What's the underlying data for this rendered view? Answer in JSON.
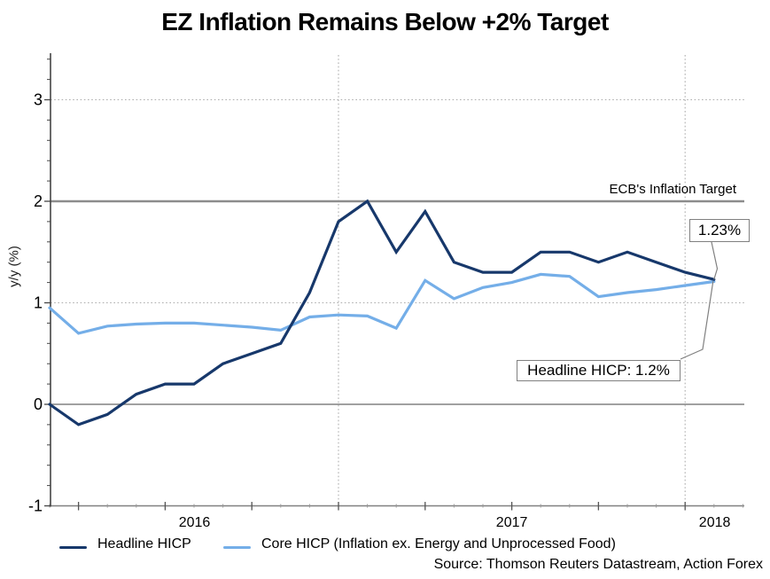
{
  "title": "EZ Inflation Remains Below +2% Target",
  "source": "Source: Thomson Reuters Datastream, Action Forex",
  "annotations": {
    "target_label": "ECB's Inflation Target",
    "last_value_tag": "1.23%",
    "callout": "Headline HICP: 1.2%"
  },
  "legend": {
    "items": [
      {
        "label": "Headline HICP",
        "color": "#17386B"
      },
      {
        "label": "Core HICP (Inflation ex. Energy and Unprocessed Food)",
        "color": "#74AEE8"
      }
    ]
  },
  "colors": {
    "headline": "#17386B",
    "core": "#74AEE8",
    "dotted_grid": "#ADADAD",
    "zero_line": "#808080",
    "target_line": "#8C8C8C",
    "y_axis": "#454545",
    "x_axis": "#808080",
    "leader": "#808080",
    "text": "#000000"
  },
  "chart_data": {
    "type": "line",
    "title": "EZ Inflation Remains Below +2% Target",
    "xlabel": "",
    "ylabel": "y/y (%)",
    "ylim": [
      -1,
      3.45
    ],
    "y_ticks": [
      -1,
      0,
      1,
      2,
      3
    ],
    "y_minor_tick_step": 0.2,
    "grid": "dotted horizontal lines at y=1 and y=3; dotted vertical lines at Jan 2017 and Jan 2018; solid gray lines at y=0 and y=2",
    "legend_position": "bottom",
    "x": [
      "Mar 2016",
      "Apr 2016",
      "May 2016",
      "Jun 2016",
      "Jul 2016",
      "Aug 2016",
      "Sep 2016",
      "Oct 2016",
      "Nov 2016",
      "Dec 2016",
      "Jan 2017",
      "Feb 2017",
      "Mar 2017",
      "Apr 2017",
      "May 2017",
      "Jun 2017",
      "Jul 2017",
      "Aug 2017",
      "Sep 2017",
      "Oct 2017",
      "Nov 2017",
      "Dec 2017",
      "Jan 2018",
      "Feb 2018"
    ],
    "x_year_labels": [
      "2016",
      "2017",
      "2018"
    ],
    "x_year_gridlines": [
      "Jan 2017",
      "Jan 2018"
    ],
    "series": [
      {
        "name": "Headline HICP",
        "color": "#17386B",
        "values": [
          0.0,
          -0.2,
          -0.1,
          0.1,
          0.2,
          0.2,
          0.4,
          0.5,
          0.6,
          1.1,
          1.8,
          2.0,
          1.5,
          1.9,
          1.4,
          1.3,
          1.3,
          1.5,
          1.5,
          1.4,
          1.5,
          1.4,
          1.3,
          1.23
        ]
      },
      {
        "name": "Core HICP (Inflation ex. Energy and Unprocessed Food)",
        "color": "#74AEE8",
        "values": [
          0.95,
          0.7,
          0.77,
          0.79,
          0.8,
          0.8,
          0.78,
          0.76,
          0.73,
          0.86,
          0.88,
          0.87,
          0.75,
          1.22,
          1.04,
          1.15,
          1.2,
          1.28,
          1.26,
          1.06,
          1.1,
          1.13,
          1.17,
          1.21
        ]
      }
    ],
    "reference_lines": [
      {
        "y": 2,
        "label": "ECB's Inflation Target"
      },
      {
        "y": 0,
        "label": ""
      }
    ],
    "annotations": [
      {
        "text": "1.23%",
        "target": "last Headline HICP point"
      },
      {
        "text": "Headline HICP: 1.2%",
        "target": "last Headline HICP point"
      }
    ]
  }
}
